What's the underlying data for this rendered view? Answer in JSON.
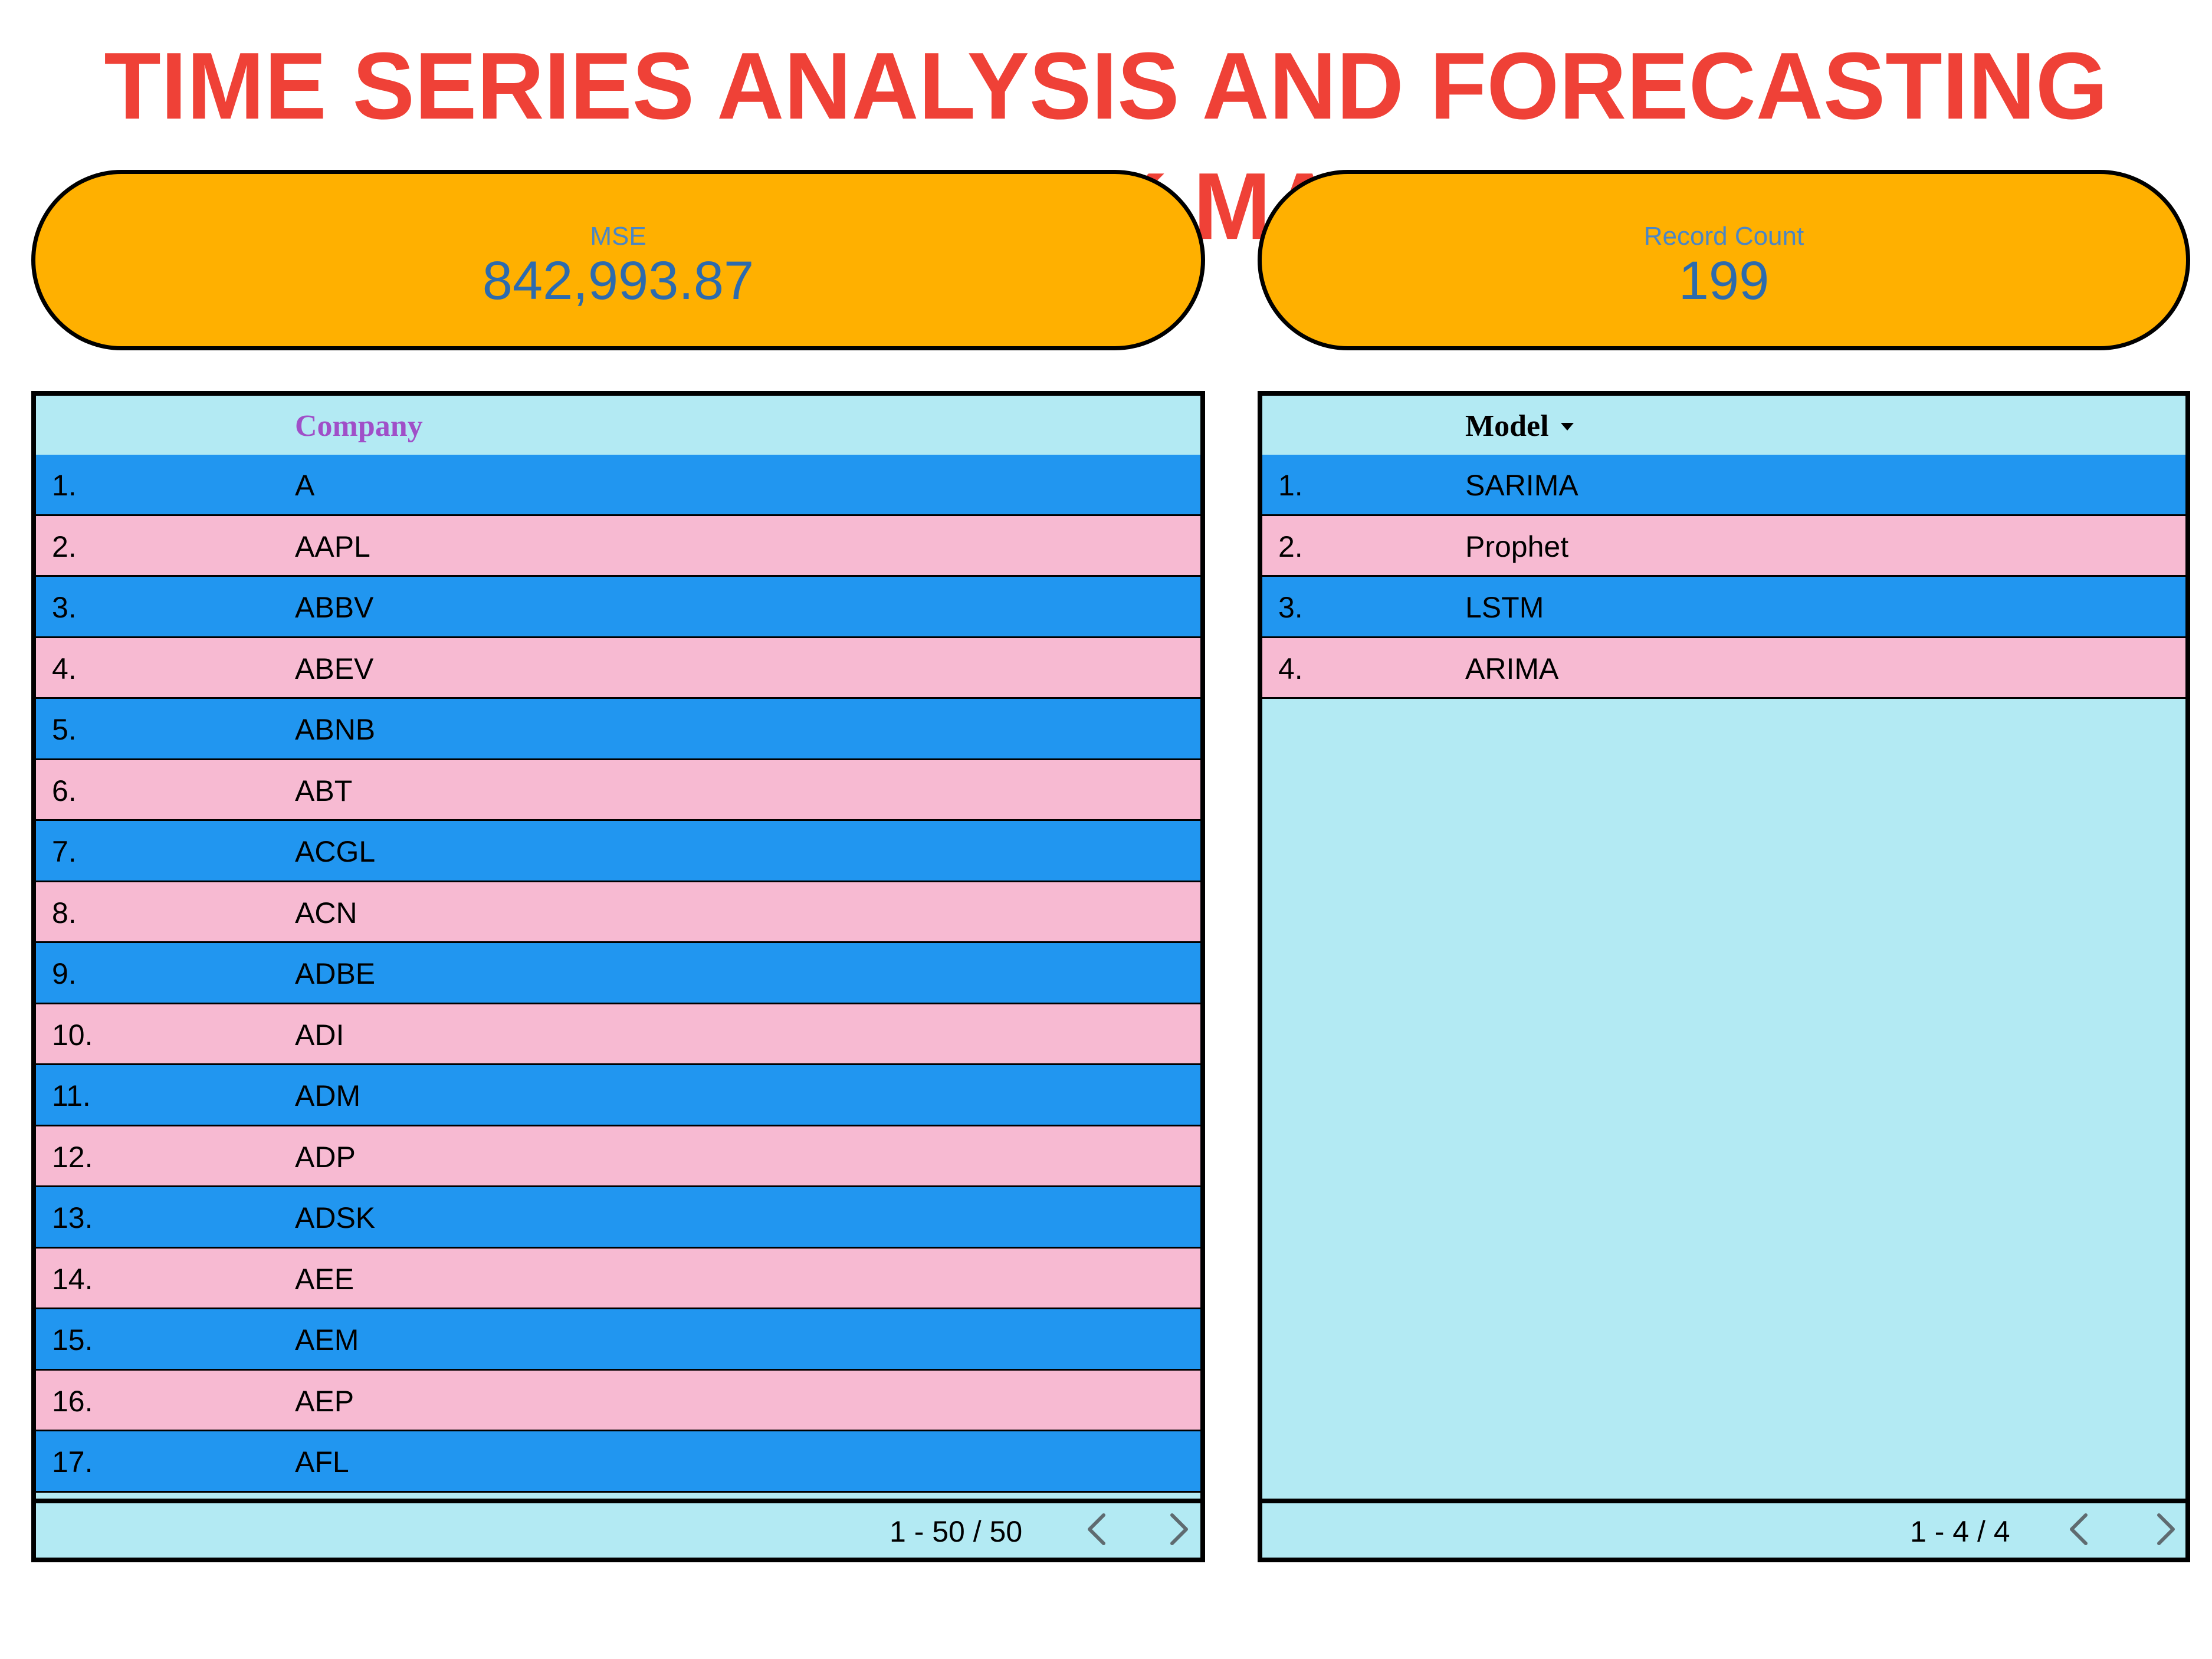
{
  "title": "TIME SERIES ANALYSIS AND FORECASTING FOR STOCK MARKET",
  "colors": {
    "title": "#ef4137",
    "kpi_bg": "#ffb000",
    "table_bg": "#b3eaf3",
    "row_odd": "#2196f0",
    "row_even": "#f7bad2"
  },
  "kpis": [
    {
      "label": "MSE",
      "value": "842,993.87"
    },
    {
      "label": "Record Count",
      "value": "199"
    }
  ],
  "company_table": {
    "header": "Company",
    "rows": [
      {
        "idx": "1.",
        "value": "A"
      },
      {
        "idx": "2.",
        "value": "AAPL"
      },
      {
        "idx": "3.",
        "value": "ABBV"
      },
      {
        "idx": "4.",
        "value": "ABEV"
      },
      {
        "idx": "5.",
        "value": "ABNB"
      },
      {
        "idx": "6.",
        "value": "ABT"
      },
      {
        "idx": "7.",
        "value": "ACGL"
      },
      {
        "idx": "8.",
        "value": "ACN"
      },
      {
        "idx": "9.",
        "value": "ADBE"
      },
      {
        "idx": "10.",
        "value": "ADI"
      },
      {
        "idx": "11.",
        "value": "ADM"
      },
      {
        "idx": "12.",
        "value": "ADP"
      },
      {
        "idx": "13.",
        "value": "ADSK"
      },
      {
        "idx": "14.",
        "value": "AEE"
      },
      {
        "idx": "15.",
        "value": "AEM"
      },
      {
        "idx": "16.",
        "value": "AEP"
      },
      {
        "idx": "17.",
        "value": "AFL"
      }
    ],
    "pager": "1 - 50 / 50",
    "prev_icon": "chevron-left-icon",
    "next_icon": "chevron-right-icon"
  },
  "model_table": {
    "header": "Model",
    "sort_icon": "sort-desc-icon",
    "rows": [
      {
        "idx": "1.",
        "value": "SARIMA"
      },
      {
        "idx": "2.",
        "value": "Prophet"
      },
      {
        "idx": "3.",
        "value": "LSTM"
      },
      {
        "idx": "4.",
        "value": "ARIMA"
      }
    ],
    "pager": "1 - 4 / 4",
    "prev_icon": "chevron-left-icon",
    "next_icon": "chevron-right-icon"
  }
}
